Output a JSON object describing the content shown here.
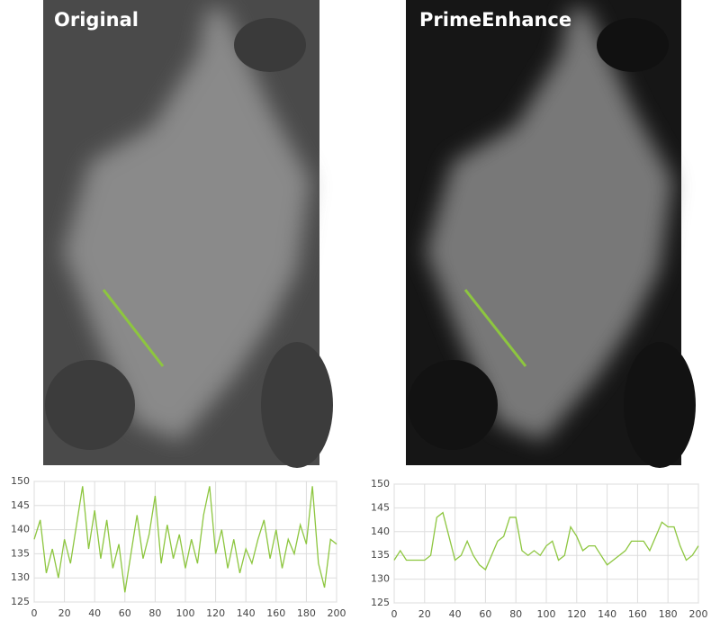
{
  "images": [
    {
      "label": "Original"
    },
    {
      "label": "PrimeEnhance"
    }
  ],
  "chart_data": [
    {
      "type": "line",
      "x": [
        0,
        4,
        8,
        12,
        16,
        20,
        24,
        28,
        32,
        36,
        40,
        44,
        48,
        52,
        56,
        60,
        64,
        68,
        72,
        76,
        80,
        84,
        88,
        92,
        96,
        100,
        104,
        108,
        112,
        116,
        120,
        124,
        128,
        132,
        136,
        140,
        144,
        148,
        152,
        156,
        160,
        164,
        168,
        172,
        176,
        180,
        184,
        188,
        192,
        196,
        200
      ],
      "series": [
        {
          "color": "#8dc63f",
          "values": [
            138,
            142,
            131,
            136,
            130,
            138,
            133,
            141,
            149,
            136,
            144,
            134,
            142,
            132,
            137,
            127,
            135,
            143,
            134,
            139,
            147,
            133,
            141,
            134,
            139,
            132,
            138,
            133,
            143,
            149,
            135,
            140,
            132,
            138,
            131,
            136,
            133,
            138,
            142,
            134,
            140,
            132,
            138,
            135,
            141,
            137,
            149,
            133,
            128,
            138,
            137
          ]
        }
      ],
      "xlim": [
        0,
        200
      ],
      "xticks": [
        0,
        20,
        40,
        60,
        80,
        100,
        120,
        140,
        160,
        180,
        200
      ],
      "ylim": [
        125,
        150
      ],
      "yticks": [
        125,
        130,
        135,
        140,
        145,
        150
      ],
      "grid": true
    },
    {
      "type": "line",
      "x": [
        0,
        4,
        8,
        12,
        16,
        20,
        24,
        28,
        32,
        36,
        40,
        44,
        48,
        52,
        56,
        60,
        64,
        68,
        72,
        76,
        80,
        84,
        88,
        92,
        96,
        100,
        104,
        108,
        112,
        116,
        120,
        124,
        128,
        132,
        136,
        140,
        144,
        148,
        152,
        156,
        160,
        164,
        168,
        172,
        176,
        180,
        184,
        188,
        192,
        196,
        200
      ],
      "series": [
        {
          "color": "#8dc63f",
          "values": [
            134,
            136,
            134,
            134,
            134,
            134,
            135,
            143,
            144,
            139,
            134,
            135,
            138,
            135,
            133,
            132,
            135,
            138,
            139,
            143,
            143,
            136,
            135,
            136,
            135,
            137,
            138,
            134,
            135,
            141,
            139,
            136,
            137,
            137,
            135,
            133,
            134,
            135,
            136,
            138,
            138,
            138,
            136,
            139,
            142,
            141,
            141,
            137,
            134,
            135,
            137
          ]
        }
      ],
      "xlim": [
        0,
        200
      ],
      "xticks": [
        0,
        20,
        40,
        60,
        80,
        100,
        120,
        140,
        160,
        180,
        200
      ],
      "ylim": [
        125,
        150
      ],
      "yticks": [
        125,
        130,
        135,
        140,
        145,
        150
      ],
      "grid": true
    }
  ]
}
